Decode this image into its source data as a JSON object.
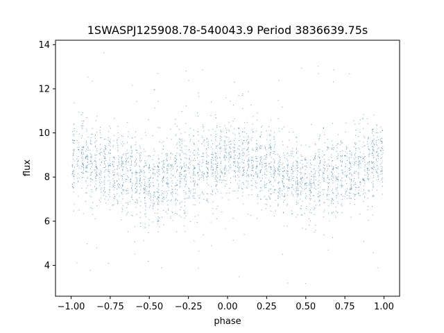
{
  "chart_data": {
    "type": "scatter",
    "title": "1SWASPJ125908.78-540043.9 Period 3836639.75s",
    "xlabel": "phase",
    "ylabel": "flux",
    "xlim": [
      -1.1,
      1.1
    ],
    "ylim": [
      2.6,
      14.2
    ],
    "xticks": [
      -1.0,
      -0.75,
      -0.5,
      -0.25,
      0.0,
      0.25,
      0.5,
      0.75,
      1.0
    ],
    "xtick_labels": [
      "−1.00",
      "−0.75",
      "−0.50",
      "−0.25",
      "0.00",
      "0.25",
      "0.50",
      "0.75",
      "1.00"
    ],
    "yticks": [
      4,
      6,
      8,
      10,
      12,
      14
    ],
    "ytick_labels": [
      "4",
      "6",
      "8",
      "10",
      "12",
      "14"
    ],
    "grid": false,
    "marker_color": "#1f77b4",
    "series": [
      {
        "phase_range": [
          -1.0,
          1.0
        ],
        "profile_phase": [
          0.0,
          0.1,
          0.2,
          0.3,
          0.4,
          0.5,
          0.6,
          0.7,
          0.8,
          0.9,
          1.0
        ],
        "profile_flux": [
          8.9,
          8.7,
          8.5,
          8.3,
          8.1,
          7.6,
          7.9,
          8.0,
          8.3,
          8.6,
          8.9
        ],
        "scatter_sd": 0.9,
        "n_points_per_unit_phase": 1600
      }
    ]
  }
}
